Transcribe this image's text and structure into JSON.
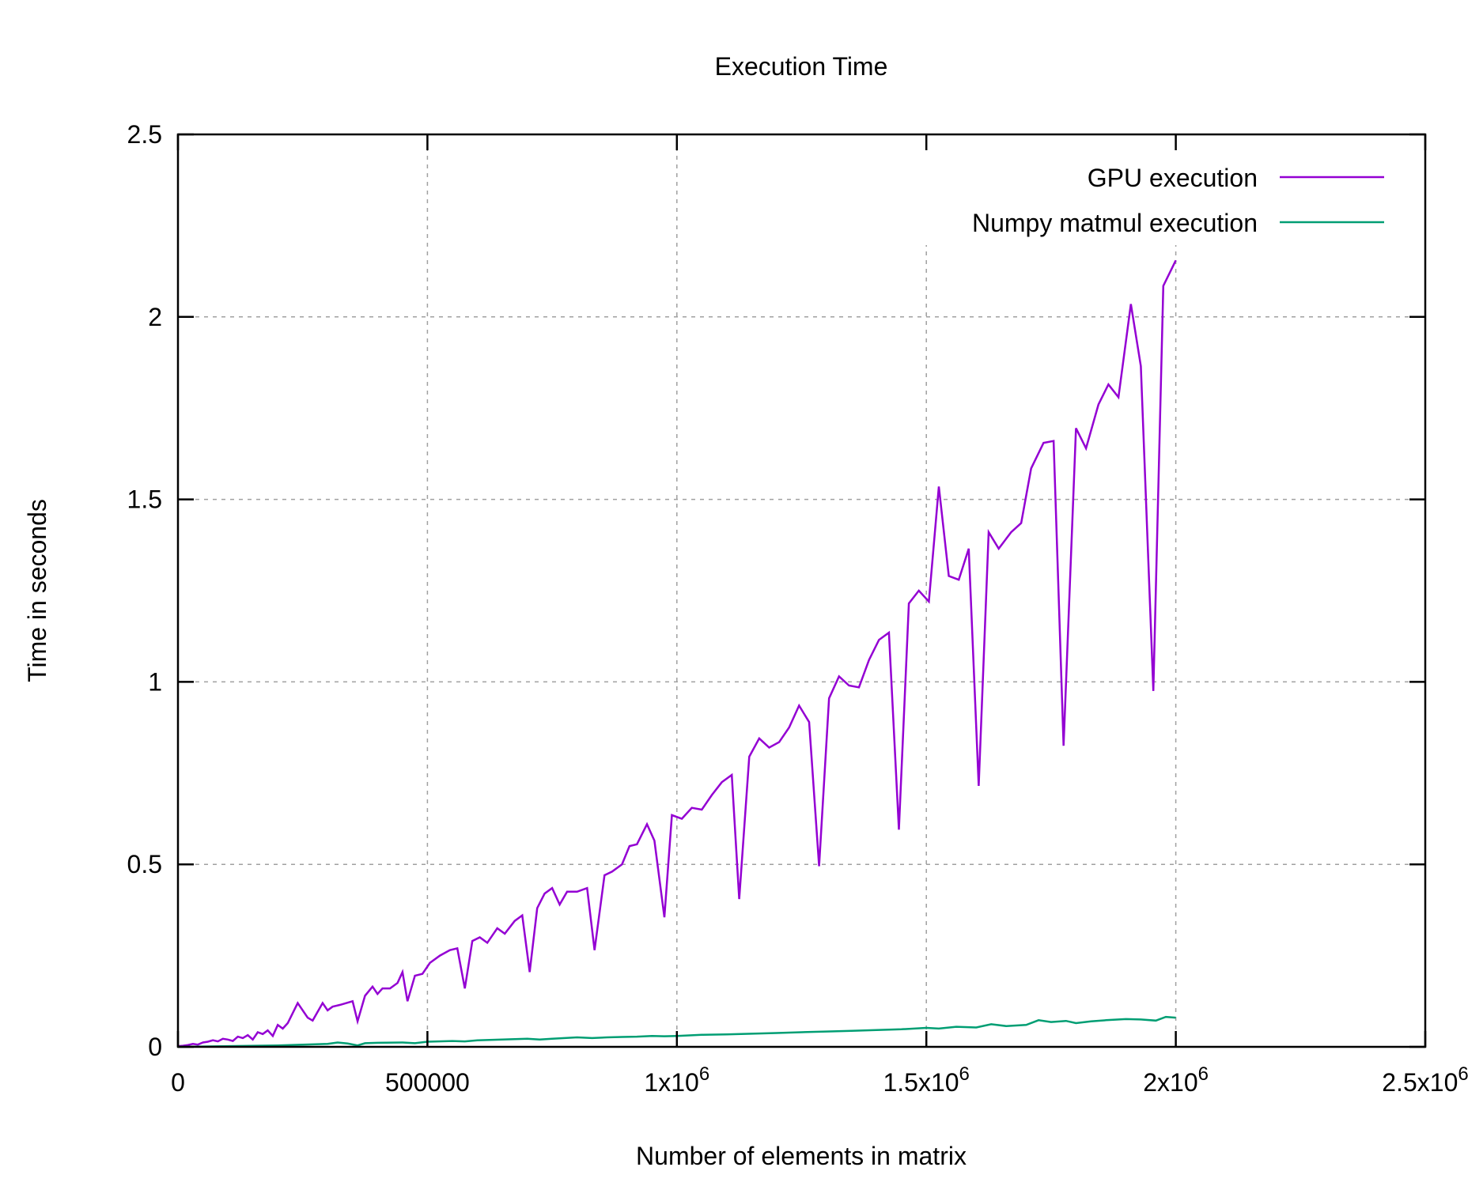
{
  "chart_data": {
    "type": "line",
    "title": "Execution Time",
    "xlabel": "Number of elements in matrix",
    "ylabel": "Time in seconds",
    "xlim": [
      0,
      2500000
    ],
    "ylim": [
      0,
      2.5
    ],
    "x_ticks": [
      {
        "value": 0,
        "base": "0",
        "exp": ""
      },
      {
        "value": 500000,
        "base": "500000",
        "exp": ""
      },
      {
        "value": 1000000,
        "base": "1x10",
        "exp": "6"
      },
      {
        "value": 1500000,
        "base": "1.5x10",
        "exp": "6"
      },
      {
        "value": 2000000,
        "base": "2x10",
        "exp": "6"
      },
      {
        "value": 2500000,
        "base": "2.5x10",
        "exp": "6"
      }
    ],
    "y_ticks": [
      {
        "value": 0,
        "label": "0"
      },
      {
        "value": 0.5,
        "label": "0.5"
      },
      {
        "value": 1,
        "label": "1"
      },
      {
        "value": 1.5,
        "label": "1.5"
      },
      {
        "value": 2,
        "label": "2"
      },
      {
        "value": 2.5,
        "label": "2.5"
      }
    ],
    "grid": true,
    "legend_position": "top-right",
    "series": [
      {
        "name": "GPU execution",
        "color": "#9400d3",
        "points": [
          [
            0,
            0.002
          ],
          [
            10000,
            0.003
          ],
          [
            20000,
            0.005
          ],
          [
            30000,
            0.008
          ],
          [
            40000,
            0.006
          ],
          [
            50000,
            0.012
          ],
          [
            60000,
            0.014
          ],
          [
            70000,
            0.018
          ],
          [
            80000,
            0.015
          ],
          [
            90000,
            0.022
          ],
          [
            100000,
            0.02
          ],
          [
            110000,
            0.016
          ],
          [
            120000,
            0.028
          ],
          [
            130000,
            0.024
          ],
          [
            140000,
            0.032
          ],
          [
            150000,
            0.02
          ],
          [
            160000,
            0.04
          ],
          [
            170000,
            0.035
          ],
          [
            180000,
            0.045
          ],
          [
            190000,
            0.03
          ],
          [
            200000,
            0.06
          ],
          [
            210000,
            0.05
          ],
          [
            220000,
            0.065
          ],
          [
            240000,
            0.12
          ],
          [
            260000,
            0.08
          ],
          [
            270000,
            0.072
          ],
          [
            290000,
            0.12
          ],
          [
            300000,
            0.1
          ],
          [
            310000,
            0.11
          ],
          [
            325000,
            0.115
          ],
          [
            350000,
            0.125
          ],
          [
            360000,
            0.07
          ],
          [
            375000,
            0.14
          ],
          [
            390000,
            0.165
          ],
          [
            400000,
            0.145
          ],
          [
            410000,
            0.16
          ],
          [
            425000,
            0.16
          ],
          [
            440000,
            0.175
          ],
          [
            450000,
            0.205
          ],
          [
            460000,
            0.125
          ],
          [
            475000,
            0.195
          ],
          [
            490000,
            0.2
          ],
          [
            505000,
            0.23
          ],
          [
            525000,
            0.25
          ],
          [
            545000,
            0.265
          ],
          [
            560000,
            0.27
          ],
          [
            575000,
            0.16
          ],
          [
            590000,
            0.29
          ],
          [
            605000,
            0.3
          ],
          [
            620000,
            0.285
          ],
          [
            640000,
            0.325
          ],
          [
            655000,
            0.31
          ],
          [
            675000,
            0.345
          ],
          [
            690000,
            0.36
          ],
          [
            705000,
            0.205
          ],
          [
            720000,
            0.38
          ],
          [
            735000,
            0.42
          ],
          [
            750000,
            0.435
          ],
          [
            765000,
            0.39
          ],
          [
            780000,
            0.425
          ],
          [
            800000,
            0.425
          ],
          [
            820000,
            0.435
          ],
          [
            835000,
            0.265
          ],
          [
            855000,
            0.47
          ],
          [
            870000,
            0.48
          ],
          [
            890000,
            0.5
          ],
          [
            905000,
            0.55
          ],
          [
            920000,
            0.555
          ],
          [
            940000,
            0.61
          ],
          [
            955000,
            0.565
          ],
          [
            975000,
            0.355
          ],
          [
            990000,
            0.635
          ],
          [
            1010000,
            0.625
          ],
          [
            1030000,
            0.655
          ],
          [
            1050000,
            0.65
          ],
          [
            1070000,
            0.69
          ],
          [
            1090000,
            0.725
          ],
          [
            1110000,
            0.745
          ],
          [
            1125000,
            0.405
          ],
          [
            1145000,
            0.795
          ],
          [
            1165000,
            0.845
          ],
          [
            1185000,
            0.82
          ],
          [
            1205000,
            0.835
          ],
          [
            1225000,
            0.875
          ],
          [
            1245000,
            0.935
          ],
          [
            1265000,
            0.89
          ],
          [
            1285000,
            0.495
          ],
          [
            1305000,
            0.955
          ],
          [
            1325000,
            1.015
          ],
          [
            1345000,
            0.99
          ],
          [
            1365000,
            0.985
          ],
          [
            1385000,
            1.06
          ],
          [
            1405000,
            1.115
          ],
          [
            1425000,
            1.135
          ],
          [
            1445000,
            0.595
          ],
          [
            1465000,
            1.215
          ],
          [
            1485000,
            1.25
          ],
          [
            1505000,
            1.22
          ],
          [
            1525000,
            1.535
          ],
          [
            1545000,
            1.29
          ],
          [
            1565000,
            1.28
          ],
          [
            1585000,
            1.365
          ],
          [
            1605000,
            0.715
          ],
          [
            1625000,
            1.41
          ],
          [
            1645000,
            1.365
          ],
          [
            1670000,
            1.41
          ],
          [
            1690000,
            1.435
          ],
          [
            1710000,
            1.585
          ],
          [
            1735000,
            1.655
          ],
          [
            1755000,
            1.66
          ],
          [
            1775000,
            0.825
          ],
          [
            1800000,
            1.695
          ],
          [
            1820000,
            1.64
          ],
          [
            1845000,
            1.76
          ],
          [
            1865000,
            1.815
          ],
          [
            1885000,
            1.78
          ],
          [
            1910000,
            2.035
          ],
          [
            1930000,
            1.865
          ],
          [
            1955000,
            0.975
          ],
          [
            1975000,
            2.085
          ],
          [
            2000000,
            2.155
          ]
        ]
      },
      {
        "name": "Numpy matmul execution",
        "color": "#009e73",
        "points": [
          [
            0,
            0.0
          ],
          [
            100000,
            0.002
          ],
          [
            200000,
            0.004
          ],
          [
            250000,
            0.006
          ],
          [
            300000,
            0.008
          ],
          [
            320000,
            0.012
          ],
          [
            340000,
            0.009
          ],
          [
            360000,
            0.004
          ],
          [
            375000,
            0.01
          ],
          [
            400000,
            0.011
          ],
          [
            450000,
            0.012
          ],
          [
            475000,
            0.01
          ],
          [
            500000,
            0.014
          ],
          [
            550000,
            0.016
          ],
          [
            575000,
            0.015
          ],
          [
            600000,
            0.018
          ],
          [
            650000,
            0.02
          ],
          [
            700000,
            0.022
          ],
          [
            725000,
            0.02
          ],
          [
            750000,
            0.022
          ],
          [
            775000,
            0.024
          ],
          [
            800000,
            0.026
          ],
          [
            830000,
            0.024
          ],
          [
            860000,
            0.026
          ],
          [
            890000,
            0.027
          ],
          [
            920000,
            0.028
          ],
          [
            950000,
            0.03
          ],
          [
            975000,
            0.029
          ],
          [
            1000000,
            0.03
          ],
          [
            1050000,
            0.033
          ],
          [
            1100000,
            0.034
          ],
          [
            1150000,
            0.036
          ],
          [
            1200000,
            0.038
          ],
          [
            1250000,
            0.04
          ],
          [
            1300000,
            0.042
          ],
          [
            1350000,
            0.044
          ],
          [
            1400000,
            0.046
          ],
          [
            1450000,
            0.048
          ],
          [
            1500000,
            0.052
          ],
          [
            1525000,
            0.05
          ],
          [
            1560000,
            0.055
          ],
          [
            1600000,
            0.053
          ],
          [
            1630000,
            0.062
          ],
          [
            1660000,
            0.057
          ],
          [
            1700000,
            0.06
          ],
          [
            1725000,
            0.073
          ],
          [
            1750000,
            0.068
          ],
          [
            1780000,
            0.071
          ],
          [
            1800000,
            0.065
          ],
          [
            1830000,
            0.07
          ],
          [
            1860000,
            0.073
          ],
          [
            1900000,
            0.076
          ],
          [
            1930000,
            0.075
          ],
          [
            1960000,
            0.072
          ],
          [
            1980000,
            0.082
          ],
          [
            2000000,
            0.08
          ]
        ]
      }
    ]
  }
}
